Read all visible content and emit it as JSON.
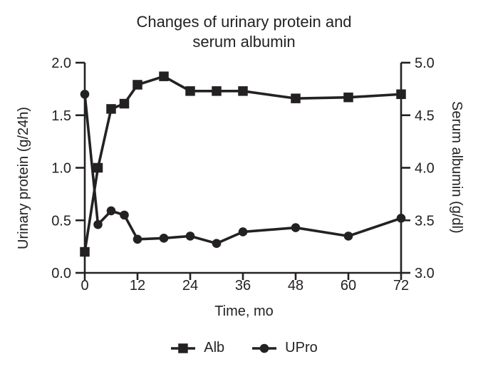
{
  "figure": {
    "title_line1": "Changes of urinary protein and",
    "title_line2": "serum albumin"
  },
  "icons": {
    "alb_marker": "square-on-line",
    "upro_marker": "circle-on-line"
  },
  "chart_data": {
    "type": "line",
    "title": "Changes of urinary protein and serum albumin",
    "xlabel": "Time, mo",
    "x": [
      0,
      3,
      6,
      9,
      12,
      18,
      24,
      30,
      36,
      48,
      60,
      72
    ],
    "x_ticks": [
      0,
      12,
      24,
      36,
      48,
      60,
      72
    ],
    "xlim": [
      0,
      72
    ],
    "y_left": {
      "label": "Urinary protein (g/24h)",
      "ticks": [
        "0.0",
        "0.5",
        "1.0",
        "1.5",
        "2.0"
      ],
      "lim": [
        0,
        2.0
      ]
    },
    "y_right": {
      "label": "Serum albumin (g/dl)",
      "ticks": [
        "3.0",
        "3.5",
        "4.0",
        "4.5",
        "5.0"
      ],
      "lim": [
        3.0,
        5.0
      ]
    },
    "series": [
      {
        "name": "Alb",
        "axis": "right",
        "marker": "square",
        "values": [
          3.2,
          4.0,
          4.56,
          4.61,
          4.79,
          4.87,
          4.73,
          4.73,
          4.73,
          4.66,
          4.67,
          4.7
        ]
      },
      {
        "name": "UPro",
        "axis": "left",
        "marker": "circle",
        "values": [
          1.7,
          0.46,
          0.59,
          0.55,
          0.32,
          0.33,
          0.35,
          0.28,
          0.39,
          0.43,
          0.35,
          0.52
        ]
      }
    ],
    "legend": {
      "position": "bottom"
    },
    "grid": false,
    "color": "#242122"
  }
}
